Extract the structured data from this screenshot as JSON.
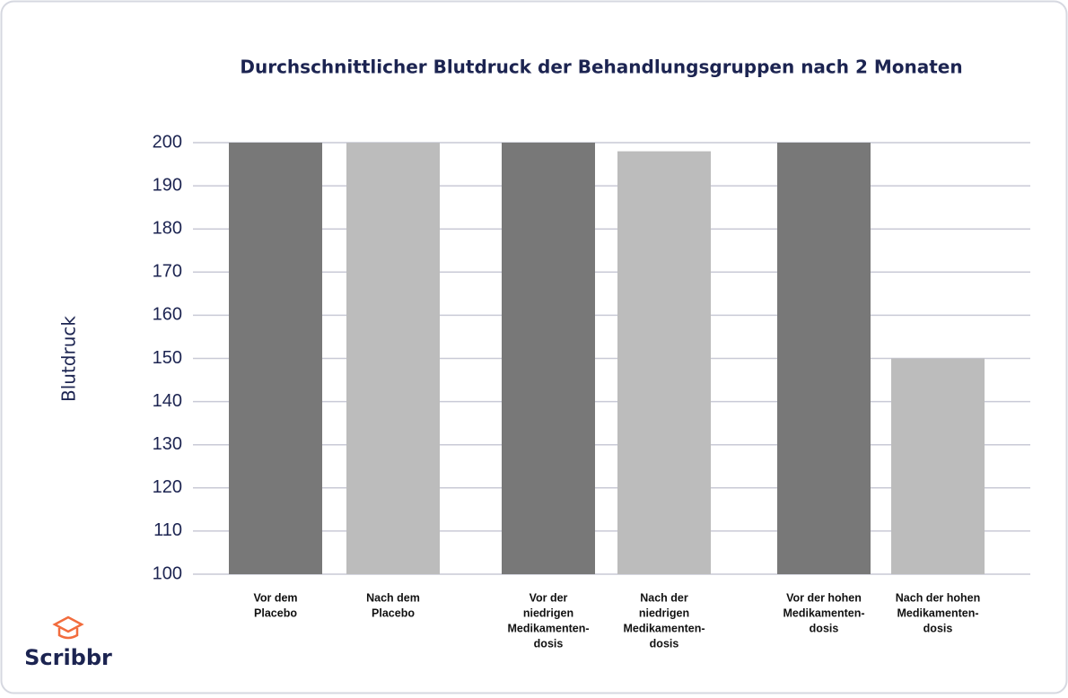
{
  "chart_data": {
    "type": "bar",
    "title": "Durchschnittlicher Blutdruck der Behandlungsgruppen nach 2 Monaten",
    "y_label": "Blutdruck",
    "categories": [
      [
        "Vor dem",
        "Placebo"
      ],
      [
        "Nach dem",
        "Placebo"
      ],
      [
        "Vor der",
        "niedrigen",
        "Medikamenten-",
        "dosis"
      ],
      [
        "Nach der",
        "niedrigen",
        "Medikamenten-",
        "dosis"
      ],
      [
        "Vor der hohen",
        "Medikamenten-",
        "dosis"
      ],
      [
        "Nach der hohen",
        "Medikamenten-",
        "dosis"
      ]
    ],
    "values": [
      200,
      200,
      200,
      198,
      200,
      150
    ],
    "colors": [
      "#787878",
      "#bcbcbc",
      "#787878",
      "#bcbcbc",
      "#787878",
      "#bcbcbc"
    ],
    "ylim": [
      100,
      200
    ],
    "yticks": [
      100,
      110,
      120,
      130,
      140,
      150,
      160,
      170,
      180,
      190,
      200
    ],
    "grid": true,
    "logo": "Scribbr"
  }
}
